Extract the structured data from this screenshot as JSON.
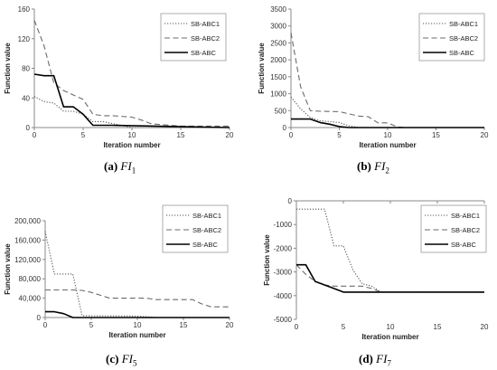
{
  "chart_data": [
    {
      "type": "line",
      "panel": "a",
      "xlabel": "Iteration number",
      "ylabel": "Function value",
      "xlim": [
        0,
        20
      ],
      "xticks": [
        0,
        5,
        10,
        15,
        20
      ],
      "ylim": [
        0,
        160
      ],
      "yticks": [
        0,
        40,
        80,
        120,
        160
      ],
      "yticklabels": [
        "0",
        "40",
        "80",
        "120",
        "160"
      ],
      "legend_position": "top-right",
      "series": [
        {
          "name": "SB-ABC1",
          "style": "dotted",
          "x": [
            0,
            1,
            2,
            3,
            4,
            5,
            6,
            7,
            10,
            20
          ],
          "y": [
            42,
            35,
            33,
            22,
            22,
            18,
            8,
            8,
            0,
            0
          ]
        },
        {
          "name": "SB-ABC2",
          "style": "dashed",
          "x": [
            0,
            1,
            2,
            3,
            5,
            6,
            7,
            8,
            10,
            11,
            12,
            15,
            20
          ],
          "y": [
            145,
            110,
            60,
            50,
            38,
            18,
            16,
            16,
            14,
            10,
            5,
            2,
            2
          ]
        },
        {
          "name": "SB-ABC",
          "style": "solid",
          "x": [
            0,
            1,
            2,
            3,
            4,
            5,
            6,
            8,
            20
          ],
          "y": [
            72,
            70,
            70,
            28,
            28,
            18,
            3,
            3,
            0
          ]
        }
      ],
      "caption": {
        "label": "(a)",
        "fn": "FI",
        "sub": "1"
      }
    },
    {
      "type": "line",
      "panel": "b",
      "xlabel": "Iteration number",
      "ylabel": "Function value",
      "xlim": [
        0,
        20
      ],
      "xticks": [
        0,
        5,
        10,
        15,
        20
      ],
      "ylim": [
        0,
        3500
      ],
      "yticks": [
        0,
        500,
        1000,
        1500,
        2000,
        2500,
        3000,
        3500
      ],
      "yticklabels": [
        "0",
        "500",
        "1000",
        "1500",
        "2000",
        "2500",
        "3000",
        "3500"
      ],
      "legend_position": "top-right",
      "series": [
        {
          "name": "SB-ABC1",
          "style": "dotted",
          "x": [
            0,
            1,
            2,
            3,
            5,
            6,
            7,
            20
          ],
          "y": [
            900,
            550,
            300,
            200,
            150,
            50,
            0,
            0
          ]
        },
        {
          "name": "SB-ABC2",
          "style": "dashed",
          "x": [
            0,
            1,
            2,
            3,
            5,
            7,
            8,
            9,
            10,
            11,
            12,
            20
          ],
          "y": [
            2800,
            1200,
            500,
            480,
            470,
            340,
            320,
            140,
            140,
            20,
            0,
            0
          ]
        },
        {
          "name": "SB-ABC",
          "style": "solid",
          "x": [
            0,
            1,
            2,
            3,
            4,
            5,
            6,
            20
          ],
          "y": [
            250,
            250,
            250,
            150,
            100,
            30,
            0,
            0
          ]
        }
      ],
      "caption": {
        "label": "(b)",
        "fn": "FI",
        "sub": "2"
      }
    },
    {
      "type": "line",
      "panel": "c",
      "xlabel": "Iteration number",
      "ylabel": "Function value",
      "xlim": [
        0,
        20
      ],
      "xticks": [
        0,
        5,
        10,
        15,
        20
      ],
      "ylim": [
        0,
        200000
      ],
      "yticks": [
        0,
        40000,
        80000,
        120000,
        160000,
        200000
      ],
      "yticklabels": [
        "0",
        "40,000",
        "80,000",
        "120,000",
        "160,000",
        "200,000"
      ],
      "legend_position": "top-right",
      "series": [
        {
          "name": "SB-ABC1",
          "style": "dotted",
          "x": [
            0,
            1,
            2,
            3,
            4,
            10,
            12,
            20
          ],
          "y": [
            178000,
            90000,
            90000,
            90000,
            4000,
            3000,
            0,
            0
          ]
        },
        {
          "name": "SB-ABC2",
          "style": "dashed",
          "x": [
            0,
            1,
            2,
            3,
            4,
            5,
            6,
            7,
            11,
            12,
            16,
            17,
            18,
            20
          ],
          "y": [
            57000,
            57000,
            57000,
            57000,
            56000,
            52000,
            46000,
            40000,
            40000,
            37000,
            37000,
            28000,
            22000,
            22000
          ]
        },
        {
          "name": "SB-ABC",
          "style": "solid",
          "x": [
            0,
            1,
            2,
            3,
            20
          ],
          "y": [
            12000,
            12000,
            8000,
            0,
            0
          ]
        }
      ],
      "caption": {
        "label": "(c)",
        "fn": "FI",
        "sub": "5"
      }
    },
    {
      "type": "line",
      "panel": "d",
      "xlabel": "Iteration number",
      "ylabel": "Function value",
      "xlim": [
        0,
        20
      ],
      "xticks": [
        0,
        5,
        10,
        15,
        20
      ],
      "ylim": [
        -5000,
        0
      ],
      "yticks": [
        -5000,
        -4000,
        -3000,
        -2000,
        -1000,
        0
      ],
      "yticklabels": [
        "-5000",
        "-4000",
        "-3000",
        "-2000",
        "-1000",
        "0"
      ],
      "legend_position": "top-right",
      "series": [
        {
          "name": "SB-ABC1",
          "style": "dotted",
          "x": [
            0,
            1,
            2,
            3,
            4,
            5,
            6,
            7,
            8,
            9,
            20
          ],
          "y": [
            -350,
            -350,
            -350,
            -350,
            -1900,
            -1900,
            -2900,
            -3500,
            -3600,
            -3850,
            -3850
          ]
        },
        {
          "name": "SB-ABC2",
          "style": "dashed",
          "x": [
            0,
            1,
            2,
            3,
            4,
            5,
            6,
            7,
            8,
            9,
            20
          ],
          "y": [
            -2700,
            -3100,
            -3400,
            -3550,
            -3600,
            -3600,
            -3600,
            -3600,
            -3700,
            -3850,
            -3850
          ]
        },
        {
          "name": "SB-ABC",
          "style": "solid",
          "x": [
            0,
            1,
            2,
            3,
            4,
            5,
            20
          ],
          "y": [
            -2700,
            -2700,
            -3400,
            -3550,
            -3700,
            -3850,
            -3850
          ]
        }
      ],
      "caption": {
        "label": "(d)",
        "fn": "FI",
        "sub": "7"
      }
    }
  ]
}
